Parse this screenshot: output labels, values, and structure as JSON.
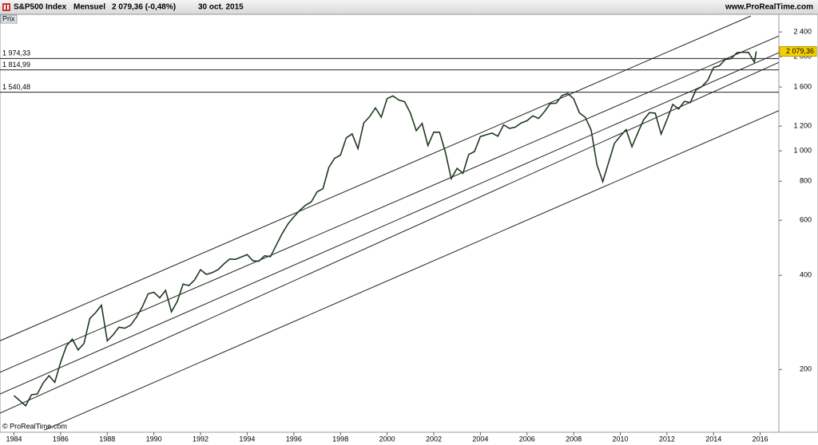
{
  "chart_data": {
    "type": "line",
    "title": "S&P500 Index",
    "period": "Mensuel",
    "last_quote": "2 079,36 (-0,48%)",
    "date": "30 oct. 2015",
    "source": "www.ProRealTime.com",
    "panel_label": "Prix",
    "copyright": "© ProRealTime.com",
    "log_scale": true,
    "color": "#1e3a1e",
    "x": [
      1984,
      1984.25,
      1984.5,
      1984.75,
      1985,
      1985.25,
      1985.5,
      1985.75,
      1986,
      1986.25,
      1986.5,
      1986.75,
      1987,
      1987.25,
      1987.5,
      1987.75,
      1988,
      1988.25,
      1988.5,
      1988.75,
      1989,
      1989.25,
      1989.5,
      1989.75,
      1990,
      1990.25,
      1990.5,
      1990.75,
      1991,
      1991.25,
      1991.5,
      1991.75,
      1992,
      1992.25,
      1992.5,
      1992.75,
      1993,
      1993.25,
      1993.5,
      1993.75,
      1994,
      1994.25,
      1994.5,
      1994.75,
      1995,
      1995.25,
      1995.5,
      1995.75,
      1996,
      1996.25,
      1996.5,
      1996.75,
      1997,
      1997.25,
      1997.5,
      1997.75,
      1998,
      1998.25,
      1998.5,
      1998.75,
      1999,
      1999.25,
      1999.5,
      1999.75,
      2000,
      2000.25,
      2000.5,
      2000.75,
      2001,
      2001.25,
      2001.5,
      2001.75,
      2002,
      2002.25,
      2002.5,
      2002.75,
      2003,
      2003.25,
      2003.5,
      2003.75,
      2004,
      2004.25,
      2004.5,
      2004.75,
      2005,
      2005.25,
      2005.5,
      2005.75,
      2006,
      2006.25,
      2006.5,
      2006.75,
      2007,
      2007.25,
      2007.5,
      2007.75,
      2008,
      2008.25,
      2008.5,
      2008.75,
      2009,
      2009.25,
      2009.5,
      2009.75,
      2010,
      2010.25,
      2010.5,
      2010.75,
      2011,
      2011.25,
      2011.5,
      2011.75,
      2012,
      2012.25,
      2012.5,
      2012.75,
      2013,
      2013.25,
      2013.5,
      2013.75,
      2014,
      2014.25,
      2014.5,
      2014.75,
      2015,
      2015.25,
      2015.5,
      2015.75,
      2015.83
    ],
    "values": [
      165,
      159,
      153,
      166,
      167,
      181,
      191,
      182,
      211,
      238,
      250,
      231,
      242,
      291,
      304,
      321,
      247,
      258,
      273,
      271,
      277,
      294,
      317,
      349,
      353,
      339,
      358,
      306,
      330,
      375,
      371,
      387,
      417,
      403,
      408,
      417,
      435,
      451,
      450,
      458,
      466,
      445,
      444,
      462,
      459,
      500,
      544,
      584,
      615,
      645,
      670,
      687,
      740,
      757,
      885,
      947,
      970,
      1101,
      1133,
      1017,
      1229,
      1286,
      1372,
      1282,
      1469,
      1498,
      1454,
      1436,
      1320,
      1160,
      1224,
      1040,
      1148,
      1147,
      989,
      815,
      879,
      848,
      974,
      995,
      1111,
      1126,
      1140,
      1114,
      1211,
      1180,
      1191,
      1228,
      1248,
      1294,
      1270,
      1335,
      1418,
      1420,
      1503,
      1526,
      1468,
      1322,
      1280,
      1166,
      903,
      797,
      919,
      1057,
      1115,
      1169,
      1031,
      1141,
      1257,
      1325,
      1320,
      1131,
      1257,
      1408,
      1362,
      1440,
      1426,
      1569,
      1606,
      1681,
      1848,
      1872,
      1960,
      1972,
      2059,
      2068,
      2063,
      1920,
      2079.36
    ],
    "xlim": [
      1983.4,
      2016.8
    ],
    "xticks": [
      1984,
      1986,
      1988,
      1990,
      1992,
      1994,
      1996,
      1998,
      2000,
      2002,
      2004,
      2006,
      2008,
      2010,
      2012,
      2014,
      2016
    ],
    "ylim": [
      126,
      2732
    ],
    "yticks": [
      200,
      400,
      600,
      800,
      {
        "value": 1000,
        "label": "1 000"
      },
      {
        "value": 1200,
        "label": "1 200"
      },
      {
        "value": 1600,
        "label": "1 600"
      },
      {
        "value": 2000,
        "label": "2 000"
      },
      {
        "value": 2400,
        "label": "2 400"
      }
    ],
    "levels": [
      {
        "value": 1974.33,
        "label": "1 974,33"
      },
      {
        "value": 1814.99,
        "label": "1 814,99"
      },
      {
        "value": 1540.48,
        "label": "1 540,48"
      }
    ],
    "last_value": {
      "value": 2079.36,
      "label": "2 079,36"
    },
    "trendlines": [
      {
        "x": [
          1983.4,
          2015.6
        ],
        "y": [
          247,
          2700
        ]
      },
      {
        "x": [
          1983.4,
          2016.8
        ],
        "y": [
          196,
          2330
        ]
      },
      {
        "x": [
          1983.4,
          2016.8
        ],
        "y": [
          167,
          2060
        ]
      },
      {
        "x": [
          1983.4,
          2016.8
        ],
        "y": [
          145,
          1918
        ]
      },
      {
        "x": [
          1985.3,
          2016.8
        ],
        "y": [
          128,
          1345
        ]
      }
    ]
  }
}
